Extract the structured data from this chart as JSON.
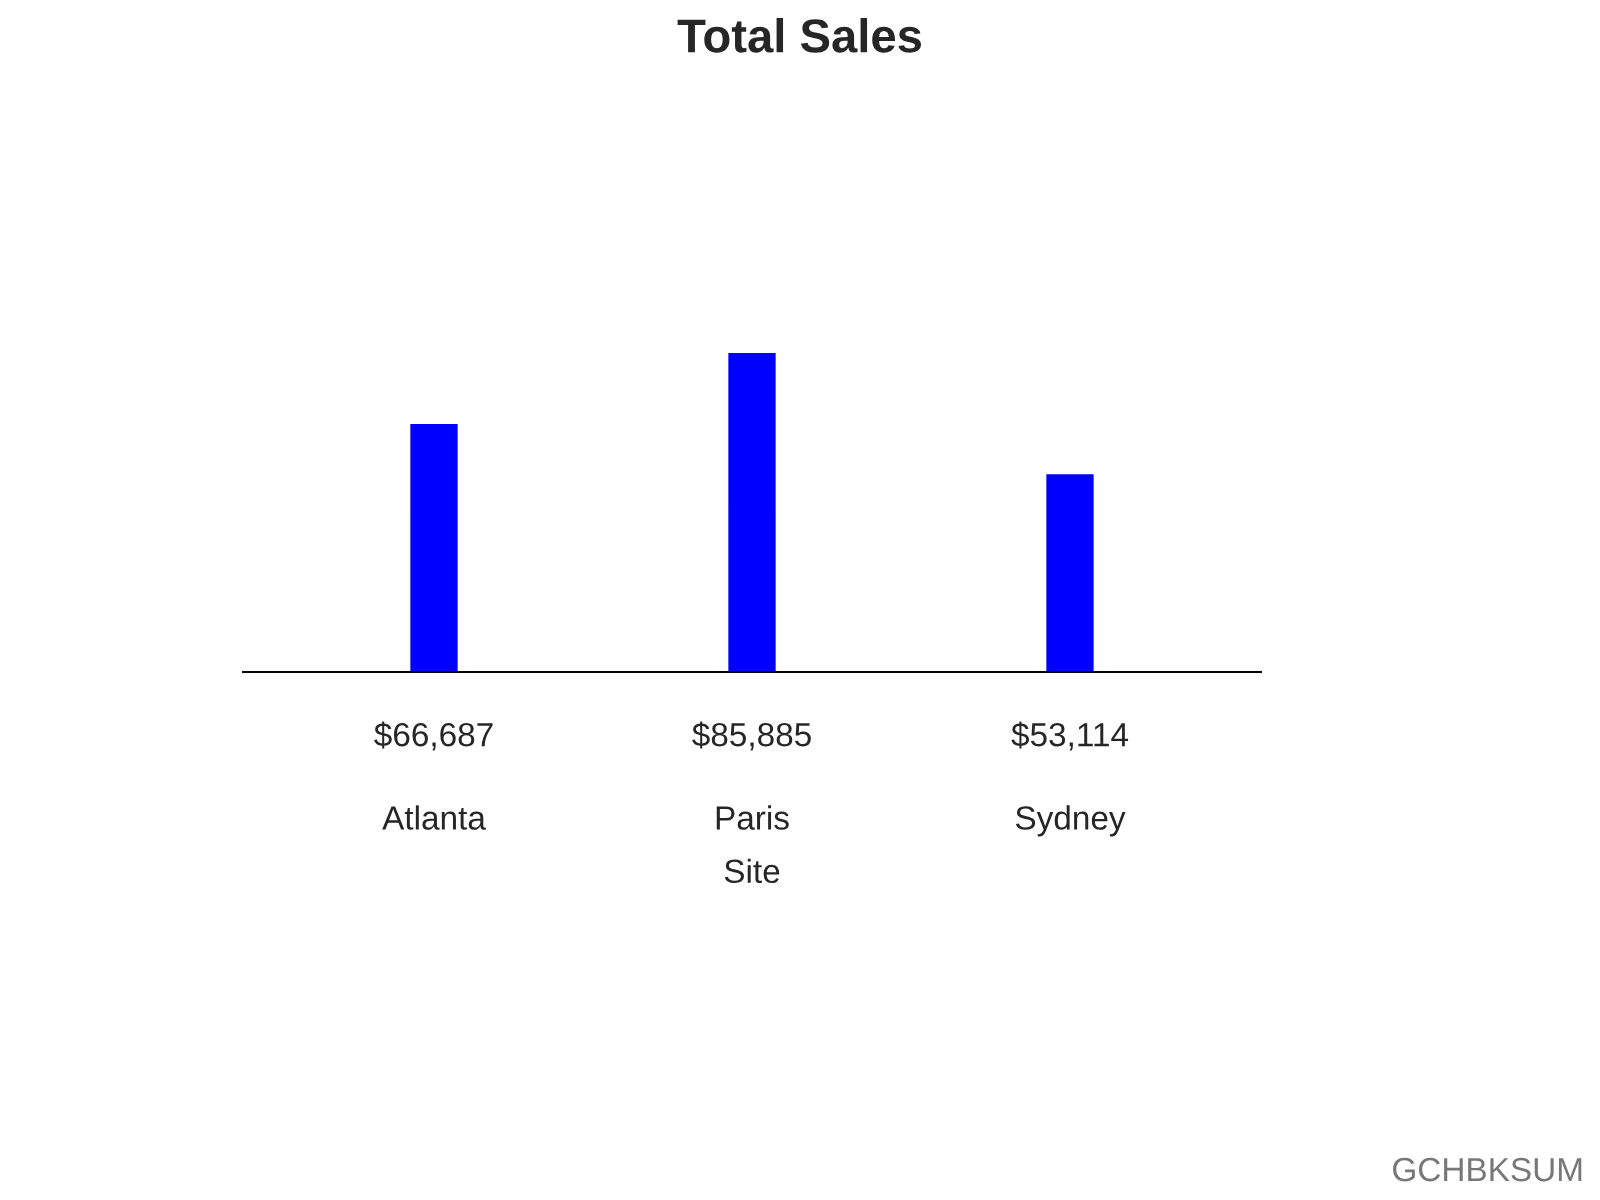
{
  "chart_data": {
    "type": "bar",
    "title": "Total Sales",
    "xlabel": "Site",
    "categories": [
      "Atlanta",
      "Paris",
      "Sydney"
    ],
    "values": [
      66687,
      85885,
      53114
    ],
    "value_labels": [
      "$66,687",
      "$85,885",
      "$53,114"
    ],
    "color": "#0000ff",
    "grid": false,
    "legend": false,
    "annotations": [
      "GCHBKSUM"
    ]
  }
}
